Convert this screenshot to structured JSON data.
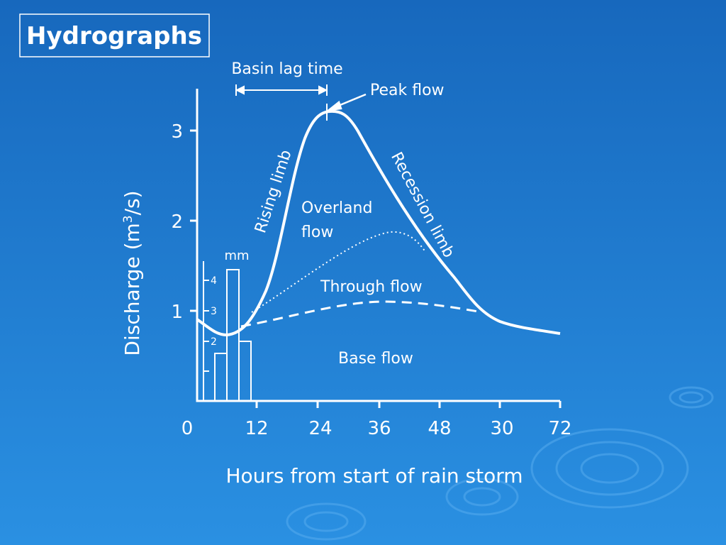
{
  "title": "Hydrographs",
  "y_axis": {
    "label_parts": [
      "Discharge (m",
      "3",
      "/s)"
    ],
    "ticks": [
      "1",
      "2",
      "3"
    ]
  },
  "x_axis": {
    "label": "Hours from start of rain storm",
    "ticks": [
      "0",
      "12",
      "24",
      "36",
      "48",
      "30",
      "72"
    ]
  },
  "rainfall": {
    "unit": "mm",
    "ticks": [
      "4",
      "3",
      "2"
    ]
  },
  "annotations": {
    "basin_lag": "Basin lag time",
    "peak": "Peak flow",
    "rising": "Rising limb",
    "recession": "Recession limb",
    "overland": [
      "Overland",
      "flow"
    ],
    "through": "Through flow",
    "base": "Base flow"
  }
}
